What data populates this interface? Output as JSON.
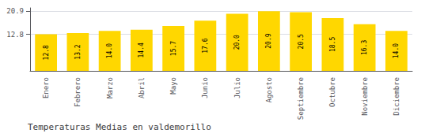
{
  "chart_data": {
    "type": "bar",
    "title": "Temperaturas Medias en valdemorillo",
    "categories": [
      "Enero",
      "Febrero",
      "Marzo",
      "Abril",
      "Mayo",
      "Junio",
      "Julio",
      "Agosto",
      "Septiembre",
      "Octubre",
      "Noviembre",
      "Diciembre"
    ],
    "values": [
      12.8,
      13.2,
      14.0,
      14.4,
      15.7,
      17.6,
      20.0,
      20.9,
      20.5,
      18.5,
      16.3,
      14.0
    ],
    "value_labels": [
      "12.8",
      "13.2",
      "14.0",
      "14.4",
      "15.7",
      "17.6",
      "20.0",
      "20.9",
      "20.5",
      "18.5",
      "16.3",
      "14.0"
    ],
    "data_labels": true,
    "color": "#FFD700",
    "ylim": [
      0,
      22.0495
    ],
    "yticks": [
      12.8,
      20.9
    ],
    "grid": true
  }
}
